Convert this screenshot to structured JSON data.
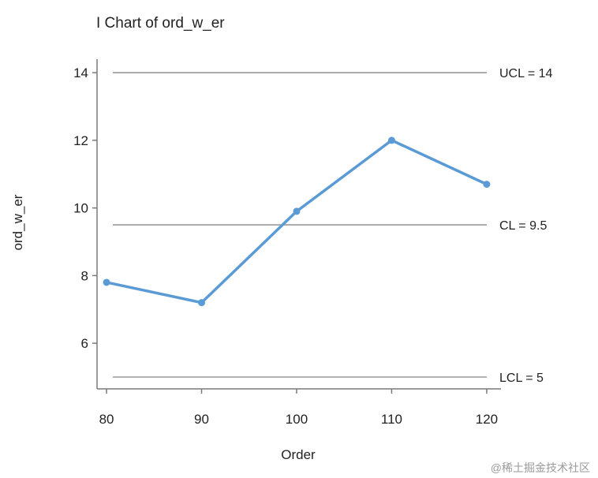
{
  "chart_data": {
    "type": "line",
    "title": "I Chart of ord_w_er",
    "xlabel": "Order",
    "ylabel": "ord_w_er",
    "x": [
      80,
      90,
      100,
      110,
      120
    ],
    "series": [
      {
        "values": [
          7.8,
          7.2,
          9.9,
          12.0,
          10.7
        ],
        "color": "#5b9bd5"
      }
    ],
    "control_limits": [
      {
        "label": "UCL = 14",
        "value": 14
      },
      {
        "label": "CL = 9.5",
        "value": 9.5
      },
      {
        "label": "LCL = 5",
        "value": 5
      }
    ],
    "x_ticks": [
      80,
      90,
      100,
      110,
      120
    ],
    "y_ticks": [
      6,
      8,
      10,
      12,
      14
    ],
    "xlim": [
      79,
      121.5
    ],
    "ylim": [
      4.65,
      14.4
    ],
    "grid": false,
    "limit_line_color": "#999999",
    "axis_color": "#7a7a7a"
  },
  "watermark": "@稀土掘金技术社区"
}
